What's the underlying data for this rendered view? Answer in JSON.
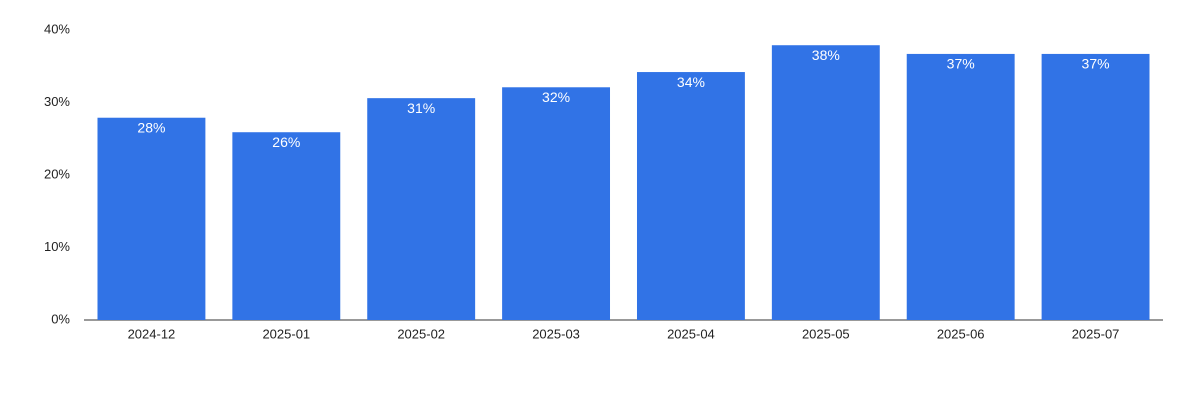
{
  "chart_data": {
    "type": "bar",
    "categories": [
      "2024-12",
      "2025-01",
      "2025-02",
      "2025-03",
      "2025-04",
      "2025-05",
      "2025-06",
      "2025-07"
    ],
    "values": [
      27.9,
      25.9,
      30.6,
      32.1,
      34.2,
      37.9,
      36.7,
      36.7
    ],
    "value_labels": [
      "28%",
      "26%",
      "31%",
      "32%",
      "34%",
      "38%",
      "37%",
      "37%"
    ],
    "color": "#3173e6",
    "ylim": [
      0,
      40
    ],
    "yticks": [
      {
        "value": 0,
        "label": "0%"
      },
      {
        "value": 10,
        "label": "10%"
      },
      {
        "value": 20,
        "label": "20%"
      },
      {
        "value": 30,
        "label": "30%"
      },
      {
        "value": 40,
        "label": "40%"
      }
    ],
    "grid": false
  }
}
